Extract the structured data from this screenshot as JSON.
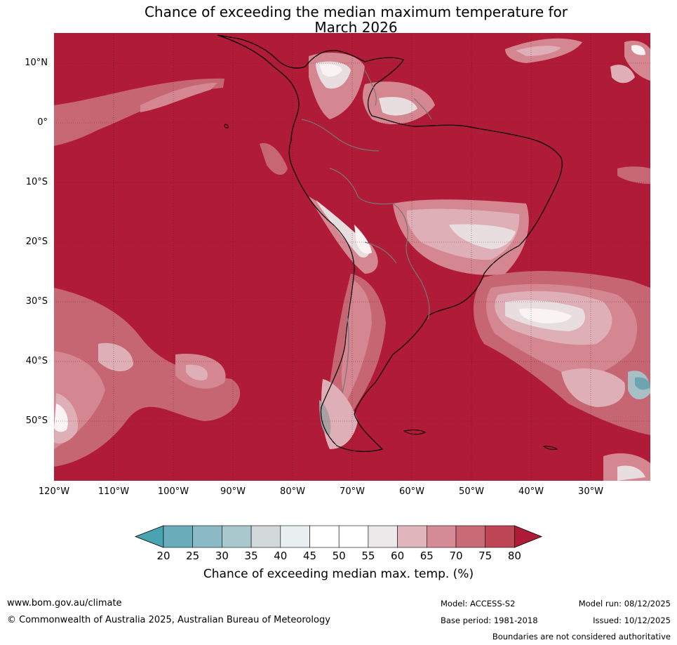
{
  "title": {
    "line1": "Chance of exceeding the median maximum temperature for",
    "line2": "March 2026"
  },
  "map": {
    "region": "South America",
    "ocean_color": "#b01b38",
    "lat_labels": [
      "10°N",
      "0°",
      "10°S",
      "20°S",
      "30°S",
      "40°S",
      "50°S"
    ],
    "lon_labels": [
      "120°W",
      "110°W",
      "100°W",
      "90°W",
      "80°W",
      "70°W",
      "60°W",
      "50°W",
      "40°W",
      "30°W"
    ]
  },
  "colorbar": {
    "title": "Chance of exceeding median max. temp. (%)",
    "ticks": [
      "20",
      "25",
      "30",
      "35",
      "40",
      "45",
      "50",
      "55",
      "60",
      "65",
      "70",
      "75",
      "80"
    ],
    "colors": [
      "#4aa3b0",
      "#6aacb9",
      "#8bb9c6",
      "#a8c8cd",
      "#d3d8da",
      "#e9eff1",
      "#ffffff",
      "#ffffff",
      "#ebe9ea",
      "#e1b7bd",
      "#d68c96",
      "#c86b76",
      "#bf4656",
      "#b01b38"
    ]
  },
  "footer": {
    "url": "www.bom.gov.au/climate",
    "copyright": "© Commonwealth of Australia 2025, Australian Bureau of Meteorology",
    "model": "Model: ACCESS-S2",
    "base_period": "Base period: 1981-2018",
    "model_run": "Model run: 08/12/2025",
    "issued": "Issued: 10/12/2025",
    "disclaimer": "Boundaries are not considered authoritative"
  }
}
